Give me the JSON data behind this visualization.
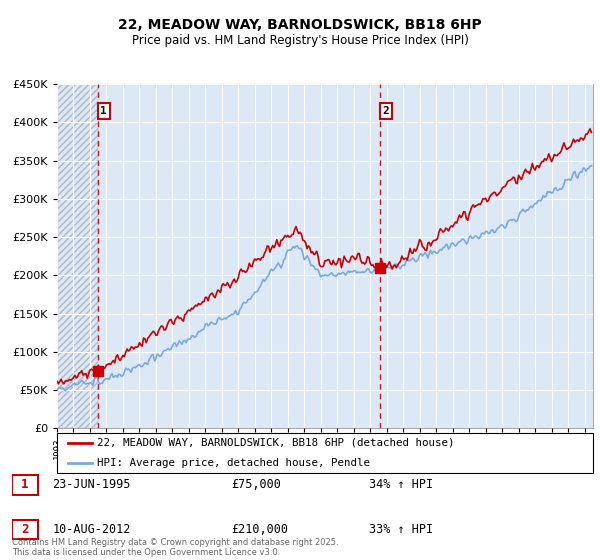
{
  "title": "22, MEADOW WAY, BARNOLDSWICK, BB18 6HP",
  "subtitle": "Price paid vs. HM Land Registry's House Price Index (HPI)",
  "legend_line1": "22, MEADOW WAY, BARNOLDSWICK, BB18 6HP (detached house)",
  "legend_line2": "HPI: Average price, detached house, Pendle",
  "transaction1_date": "23-JUN-1995",
  "transaction1_price": "£75,000",
  "transaction1_hpi": "34% ↑ HPI",
  "transaction2_date": "10-AUG-2012",
  "transaction2_price": "£210,000",
  "transaction2_hpi": "33% ↑ HPI",
  "footer": "Contains HM Land Registry data © Crown copyright and database right 2025.\nThis data is licensed under the Open Government Licence v3.0.",
  "red_color": "#cc0000",
  "blue_color": "#7aaadd",
  "grid_color": "#cccccc",
  "ylim": [
    0,
    450000
  ],
  "yticks": [
    0,
    50000,
    100000,
    150000,
    200000,
    250000,
    300000,
    350000,
    400000,
    450000
  ],
  "transaction1_x": 1995.48,
  "transaction2_x": 2012.61,
  "xmin": 1993.0,
  "xmax": 2025.5
}
